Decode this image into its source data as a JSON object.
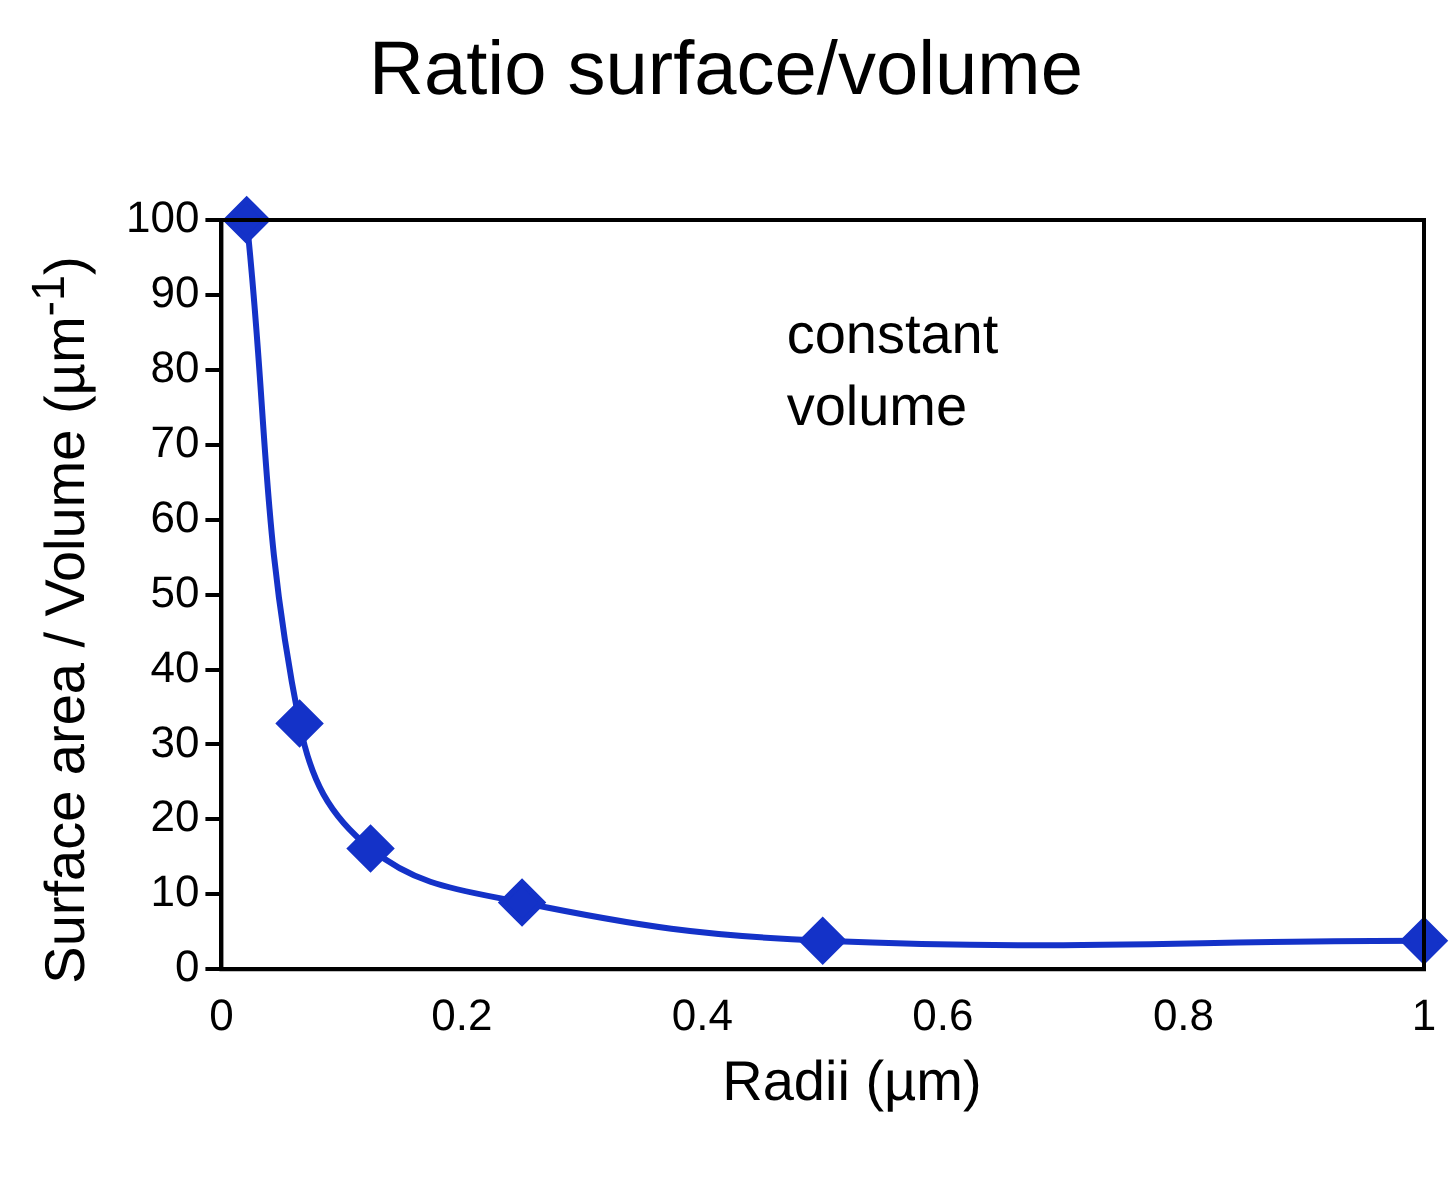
{
  "chart_data": {
    "type": "line",
    "title": "Ratio surface/volume",
    "xlabel": "Radii (µm)",
    "ylabel": "Surface area / Volume (µm$^{-1}$)",
    "x": [
      0.021,
      0.065,
      0.124,
      0.25,
      0.5,
      1.0
    ],
    "series": [
      {
        "color": "#1432c8",
        "values": [
          100,
          32.8,
          16.1,
          8.9,
          3.8,
          3.8
        ]
      }
    ],
    "xlim": [
      0,
      1
    ],
    "xticks": [
      0,
      0.2,
      0.4,
      0.6,
      0.8,
      1
    ],
    "ylim": [
      0,
      100
    ],
    "yticks": [
      0,
      10,
      20,
      30,
      40,
      50,
      60,
      70,
      80,
      90,
      100
    ],
    "annotations": [
      "constant volume"
    ],
    "grid": false,
    "legend": false,
    "marker": "diamond",
    "line_style": "solid"
  }
}
